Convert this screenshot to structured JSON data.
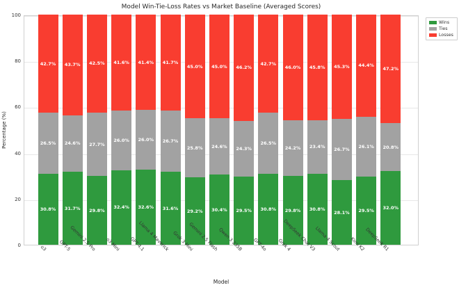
{
  "chart_data": {
    "type": "bar",
    "stacked": true,
    "title": "Model Win-Tie-Loss Rates vs Market Baseline (Averaged Scores)",
    "xlabel": "Model",
    "ylabel": "Percentage (%)",
    "ylim": [
      0,
      100
    ],
    "y_ticks": [
      0,
      20,
      40,
      60,
      80,
      100
    ],
    "grid": true,
    "legend_position": "upper right outside",
    "label_format": "percent_one_decimal",
    "categories": [
      "o3",
      "GPT-5",
      "Gemini 2.5 Pro",
      "o3 Mini",
      "GPT-4.1",
      "Llama 4 Maverick",
      "Grok 3 Mini",
      "Gemini 2.5 Flash",
      "Qwen 3 235B",
      "GPT-4o",
      "Grok 4",
      "DeepSeek Chat V3",
      "Llama 4 Scout",
      "Kimi K2",
      "DeepSeek R1"
    ],
    "series": [
      {
        "name": "Wins",
        "color": "#2f9a3e",
        "values": [
          30.8,
          31.7,
          29.8,
          32.4,
          32.6,
          31.6,
          29.2,
          30.4,
          29.5,
          30.8,
          29.8,
          30.8,
          28.1,
          29.5,
          32.0
        ]
      },
      {
        "name": "Ties",
        "color": "#a2a2a2",
        "values": [
          26.5,
          24.6,
          27.7,
          26.0,
          26.0,
          26.7,
          25.8,
          24.6,
          24.3,
          26.5,
          24.2,
          23.4,
          26.7,
          26.1,
          20.8
        ]
      },
      {
        "name": "Losses",
        "color": "#f93d30",
        "values": [
          42.7,
          43.7,
          42.5,
          41.6,
          41.4,
          41.7,
          45.0,
          45.0,
          46.2,
          42.7,
          46.0,
          45.8,
          45.3,
          44.4,
          47.2
        ]
      }
    ]
  }
}
